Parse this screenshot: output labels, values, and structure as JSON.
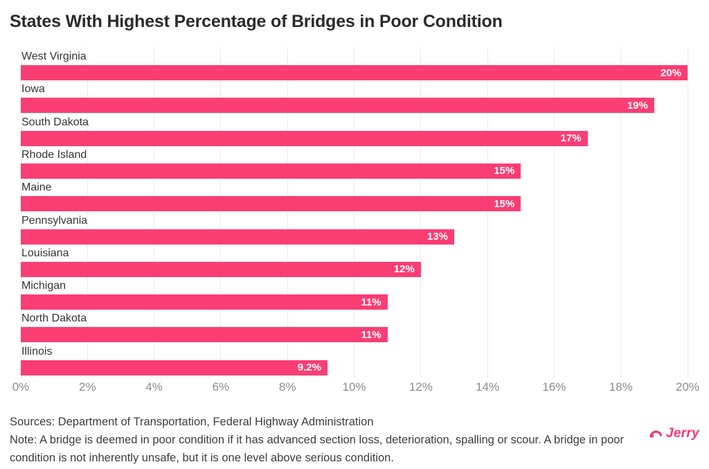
{
  "page": {
    "title": "States With Highest Percentage of Bridges in Poor Condition"
  },
  "chart_data": {
    "type": "bar",
    "orientation": "horizontal",
    "title": "States With Highest Percentage of Bridges in Poor Condition",
    "categories": [
      "West Virginia",
      "Iowa",
      "South Dakota",
      "Rhode Island",
      "Maine",
      "Pennsylvania",
      "Louisiana",
      "Michigan",
      "North Dakota",
      "Illinois"
    ],
    "values": [
      20,
      19,
      17,
      15,
      15,
      13,
      12,
      11,
      11,
      9.2
    ],
    "value_labels": [
      "20%",
      "19%",
      "17%",
      "15%",
      "15%",
      "13%",
      "12%",
      "11%",
      "11%",
      "9.2%"
    ],
    "xticks": [
      "0%",
      "2%",
      "4%",
      "6%",
      "8%",
      "10%",
      "12%",
      "14%",
      "16%",
      "18%",
      "20%"
    ],
    "xtick_values": [
      0,
      2,
      4,
      6,
      8,
      10,
      12,
      14,
      16,
      18,
      20
    ],
    "xlim": [
      0,
      20
    ],
    "xlabel": "",
    "ylabel": "",
    "grid": true,
    "legend": false,
    "bar_color": "#FA3E74",
    "grid_color": "#EBEBEB",
    "value_label_color": "#FFFFFF"
  },
  "footer": {
    "sources": "Sources: Department of Transportation, Federal Highway Administration",
    "note": "Note: A bridge is deemed in poor condition if it has advanced section loss, deterioration, spalling or scour. A bridge in poor condition is not inherently unsafe, but it is one level above serious condition.",
    "brand": "Jerry",
    "brand_color": "#F23677"
  }
}
